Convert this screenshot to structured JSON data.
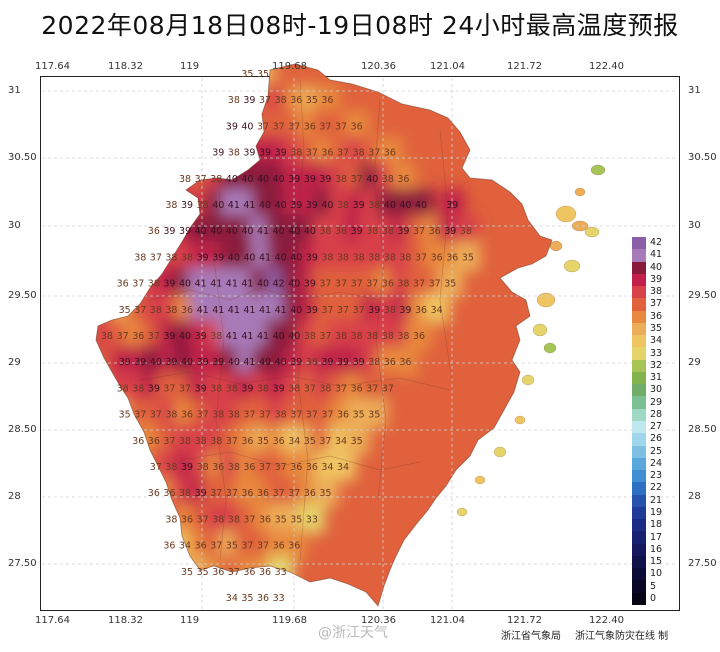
{
  "title": "2022年08月18日08时-19日08时  24小时最高温度预报",
  "longitude_labels": [
    "117.64",
    "118.32",
    "119",
    "119.68",
    "120.36",
    "121.04",
    "121.72",
    "122.40"
  ],
  "latitude_labels": [
    "31",
    "30.50",
    "30",
    "29.50",
    "29",
    "28.50",
    "28",
    "27.50"
  ],
  "legend": {
    "labels": [
      "42",
      "41",
      "40",
      "39",
      "38",
      "37",
      "36",
      "35",
      "34",
      "33",
      "32",
      "31",
      "30",
      "29",
      "28",
      "27",
      "26",
      "25",
      "24",
      "23",
      "22",
      "21",
      "19",
      "18",
      "17",
      "16",
      "15",
      "10",
      "5",
      "0"
    ],
    "colors": [
      "#8b5fa8",
      "#a77ab8",
      "#8a1a3c",
      "#c0204a",
      "#d8404a",
      "#e0613c",
      "#e8893e",
      "#ecad58",
      "#efc562",
      "#e4d46a",
      "#a7c457",
      "#84b24e",
      "#72ad68",
      "#7bc093",
      "#9fd8c4",
      "#bfe8ee",
      "#a0d6ec",
      "#7ec0e4",
      "#5aa8db",
      "#3f8ed2",
      "#2d70c3",
      "#2553ae",
      "#1e3b98",
      "#1b2a84",
      "#182070",
      "#15185e",
      "#11124a",
      "#0c0c38",
      "#080826",
      "#050516"
    ]
  },
  "credits": {
    "watermark": "@浙江天气",
    "bureau": "浙江省气象局",
    "service": "浙江气象防灾在线 制"
  },
  "map_grid_values": [
    [
      null,
      null,
      null,
      null,
      null,
      null,
      null,
      null,
      null,
      35,
      35,
      null,
      null,
      null,
      null,
      null,
      null,
      null,
      null,
      null,
      null,
      null,
      null,
      null,
      null,
      null,
      null
    ],
    [
      null,
      null,
      null,
      null,
      null,
      null,
      null,
      null,
      38,
      39,
      37,
      38,
      36,
      35,
      36,
      null,
      null,
      null,
      null,
      null,
      null,
      null,
      null,
      null,
      null,
      null,
      null
    ],
    [
      null,
      null,
      null,
      null,
      null,
      null,
      null,
      null,
      39,
      40,
      37,
      37,
      37,
      36,
      37,
      37,
      36,
      null,
      null,
      null,
      null,
      null,
      null,
      null,
      null,
      null,
      null
    ],
    [
      null,
      null,
      null,
      null,
      null,
      null,
      null,
      39,
      38,
      39,
      39,
      39,
      38,
      37,
      36,
      37,
      38,
      37,
      36,
      null,
      null,
      null,
      null,
      null,
      null,
      null,
      null
    ],
    [
      null,
      null,
      null,
      null,
      null,
      38,
      37,
      38,
      40,
      40,
      40,
      40,
      39,
      39,
      39,
      38,
      37,
      40,
      38,
      36,
      null,
      null,
      null,
      null,
      null,
      null,
      null
    ],
    [
      null,
      null,
      null,
      null,
      38,
      39,
      38,
      40,
      41,
      41,
      40,
      40,
      39,
      39,
      40,
      38,
      39,
      38,
      40,
      40,
      40,
      null,
      39,
      null,
      null,
      null,
      null
    ],
    [
      null,
      null,
      null,
      36,
      39,
      39,
      40,
      40,
      40,
      40,
      41,
      40,
      40,
      40,
      38,
      38,
      39,
      38,
      38,
      39,
      37,
      36,
      39,
      38,
      null,
      null,
      null
    ],
    [
      null,
      null,
      38,
      37,
      38,
      38,
      39,
      39,
      40,
      40,
      41,
      40,
      40,
      39,
      38,
      38,
      38,
      38,
      38,
      38,
      37,
      36,
      36,
      35,
      null,
      null,
      null
    ],
    [
      null,
      36,
      37,
      38,
      39,
      40,
      41,
      41,
      41,
      41,
      40,
      42,
      40,
      39,
      37,
      37,
      37,
      37,
      36,
      38,
      37,
      37,
      35,
      null,
      null,
      null,
      null
    ],
    [
      null,
      35,
      37,
      38,
      38,
      36,
      41,
      41,
      41,
      41,
      41,
      41,
      40,
      39,
      37,
      37,
      37,
      39,
      38,
      39,
      36,
      34,
      null,
      null,
      null,
      null,
      null
    ],
    [
      38,
      37,
      36,
      37,
      39,
      40,
      39,
      38,
      41,
      41,
      41,
      40,
      40,
      38,
      37,
      38,
      38,
      38,
      38,
      38,
      36,
      null,
      null,
      null,
      null,
      null,
      null
    ],
    [
      null,
      39,
      39,
      40,
      39,
      40,
      39,
      39,
      40,
      41,
      40,
      40,
      39,
      38,
      39,
      39,
      39,
      38,
      36,
      36,
      null,
      null,
      null,
      null,
      null,
      null,
      null
    ],
    [
      null,
      38,
      38,
      39,
      37,
      37,
      39,
      38,
      38,
      39,
      38,
      39,
      38,
      37,
      38,
      37,
      36,
      37,
      37,
      null,
      null,
      null,
      null,
      null,
      null,
      null,
      null
    ],
    [
      null,
      35,
      37,
      37,
      38,
      36,
      37,
      38,
      38,
      37,
      37,
      38,
      37,
      37,
      37,
      36,
      35,
      35,
      null,
      null,
      null,
      null,
      null,
      null,
      null,
      null,
      null
    ],
    [
      null,
      null,
      36,
      36,
      37,
      38,
      38,
      38,
      37,
      36,
      35,
      36,
      34,
      35,
      37,
      34,
      35,
      null,
      null,
      null,
      null,
      null,
      null,
      null,
      null,
      null,
      null
    ],
    [
      null,
      null,
      null,
      37,
      38,
      39,
      38,
      36,
      38,
      36,
      37,
      37,
      36,
      36,
      34,
      34,
      null,
      null,
      null,
      null,
      null,
      null,
      null,
      null,
      null,
      null,
      null
    ],
    [
      null,
      null,
      null,
      36,
      36,
      38,
      39,
      37,
      37,
      36,
      36,
      37,
      37,
      36,
      35,
      null,
      null,
      null,
      null,
      null,
      null,
      null,
      null,
      null,
      null,
      null,
      null
    ],
    [
      null,
      null,
      null,
      null,
      38,
      36,
      37,
      38,
      38,
      37,
      36,
      35,
      35,
      33,
      null,
      null,
      null,
      null,
      null,
      null,
      null,
      null,
      null,
      null,
      null,
      null,
      null
    ],
    [
      null,
      null,
      null,
      null,
      36,
      34,
      36,
      37,
      35,
      37,
      37,
      36,
      36,
      null,
      null,
      null,
      null,
      null,
      null,
      null,
      null,
      null,
      null,
      null,
      null,
      null,
      null
    ],
    [
      null,
      null,
      null,
      null,
      null,
      35,
      35,
      36,
      37,
      36,
      36,
      33,
      null,
      null,
      null,
      null,
      null,
      null,
      null,
      null,
      null,
      null,
      null,
      null,
      null,
      null,
      null
    ],
    [
      null,
      null,
      null,
      null,
      null,
      null,
      null,
      null,
      34,
      35,
      36,
      33,
      null,
      null,
      null,
      null,
      null,
      null,
      null,
      null,
      null,
      null,
      null,
      null,
      null,
      null,
      null
    ]
  ]
}
